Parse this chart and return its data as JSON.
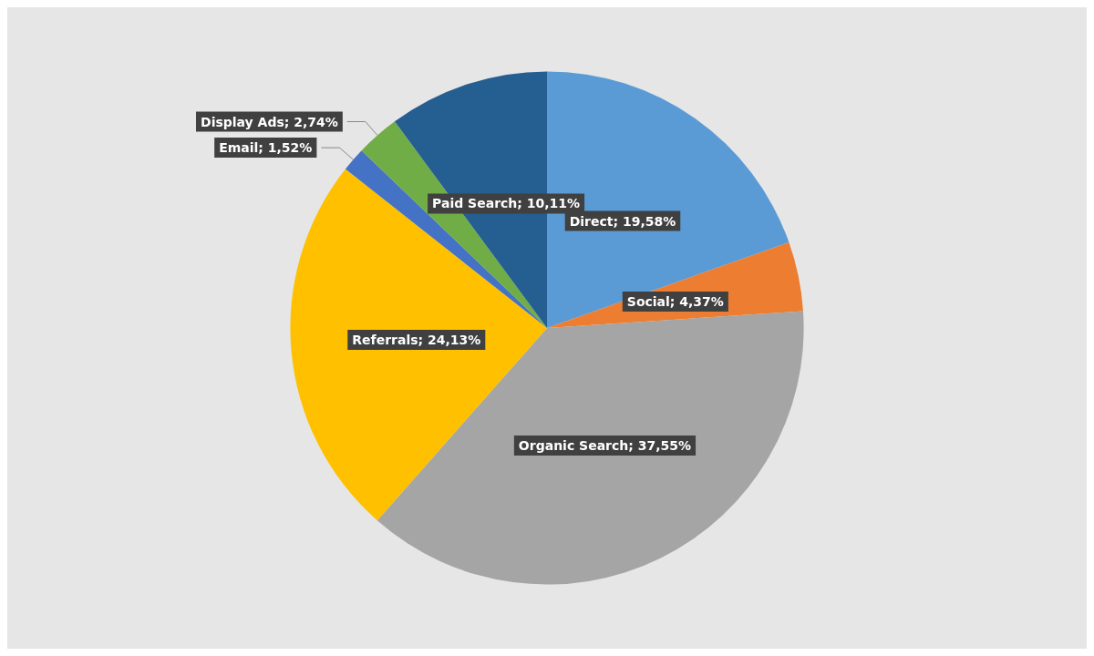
{
  "chart_data": {
    "type": "pie",
    "categories": [
      "Direct",
      "Social",
      "Organic Search",
      "Referrals",
      "Email",
      "Display Ads",
      "Paid Search"
    ],
    "values": [
      19.58,
      4.37,
      37.55,
      24.13,
      1.52,
      2.74,
      10.11
    ],
    "value_labels": [
      "19,58%",
      "4,37%",
      "37,55%",
      "24,13%",
      "1,52%",
      "2,74%",
      "10,11%"
    ],
    "colors": [
      "#5b9bd5",
      "#ed7d31",
      "#a5a5a5",
      "#ffc000",
      "#4472c4",
      "#70ad47",
      "#255e91"
    ],
    "legend": false
  }
}
